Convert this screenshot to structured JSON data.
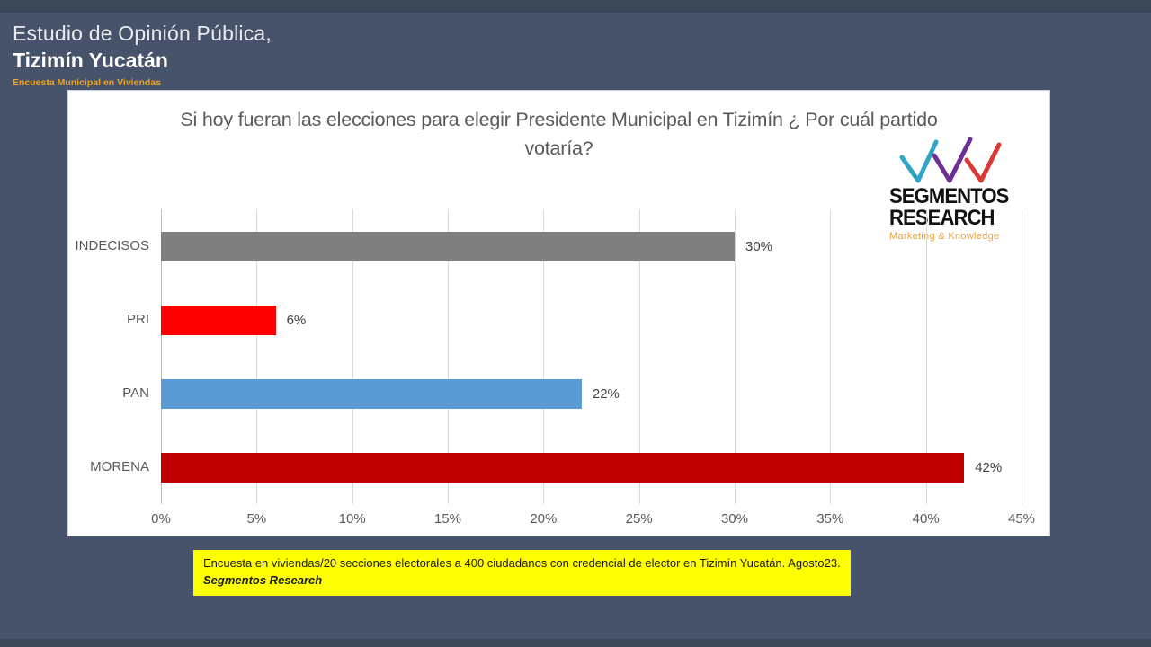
{
  "header": {
    "line1": "Estudio de Opinión Pública,",
    "line2": "Tizimín Yucatán",
    "line3": "Encuesta Municipal en Viviendas"
  },
  "logo": {
    "name_line1": "SEGMENTOS",
    "name_line2": "RESEARCH",
    "tagline": "Marketing & Knowledge",
    "check_colors": [
      "#2fa4c7",
      "#6d2f94",
      "#d93a35"
    ]
  },
  "chart_data": {
    "type": "bar",
    "orientation": "horizontal",
    "title": "Si hoy fueran las elecciones para elegir Presidente Municipal en Tizimín ¿ Por cuál  partido votaría?",
    "categories": [
      "INDECISOS",
      "PRI",
      "PAN",
      "MORENA"
    ],
    "values": [
      30,
      6,
      22,
      42
    ],
    "value_labels": [
      "30%",
      "6%",
      "22%",
      "42%"
    ],
    "bar_colors": [
      "#7f7f7f",
      "#ff0000",
      "#5b9bd5",
      "#c00000"
    ],
    "x_ticks": [
      0,
      5,
      10,
      15,
      20,
      25,
      30,
      35,
      40,
      45
    ],
    "x_tick_labels": [
      "0%",
      "5%",
      "10%",
      "15%",
      "20%",
      "25%",
      "30%",
      "35%",
      "40%",
      "45%"
    ],
    "xlim": [
      0,
      45
    ],
    "grid": true,
    "legend": false
  },
  "footnote": {
    "line1": "Encuesta en viviendas/20 secciones electorales a 400 ciudadanos con credencial de elector en Tizimín Yucatán.  Agosto23.",
    "line2": "Segmentos Research"
  },
  "colors": {
    "background": "#46536a",
    "band": "#3a4757",
    "panel": "#ffffff",
    "title_text": "#595959",
    "accent_orange": "#f0a31c",
    "note_bg": "#ffff00"
  }
}
